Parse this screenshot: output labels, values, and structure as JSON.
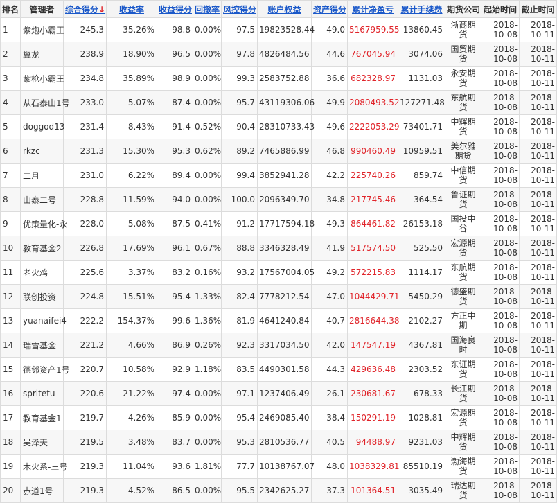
{
  "headers": [
    "排名",
    "管理者",
    "综合得分",
    "收益率",
    "收益得分",
    "回撤率",
    "风控得分",
    "账户权益",
    "资产得分",
    "累计净盈亏",
    "累计手续费",
    "期货公司",
    "起始时间",
    "截止时间"
  ],
  "sort_arrow": "↓",
  "rows": [
    {
      "rank": "1",
      "manager": "紫炮小霸王",
      "score": "245.3",
      "return_rate": "35.26%",
      "return_score": "98.8",
      "drawdown": "0.00%",
      "risk_score": "97.5",
      "equity": "19823528.44",
      "asset_score": "49.0",
      "net_pnl": "5167959.55",
      "fees": "13860.45",
      "company": "浙商期货",
      "start": "2018-10-08",
      "end": "2018-10-11"
    },
    {
      "rank": "2",
      "manager": "翼龙",
      "score": "238.9",
      "return_rate": "18.90%",
      "return_score": "96.5",
      "drawdown": "0.00%",
      "risk_score": "97.8",
      "equity": "4826484.56",
      "asset_score": "44.6",
      "net_pnl": "767045.94",
      "fees": "3074.06",
      "company": "国贸期货",
      "start": "2018-10-08",
      "end": "2018-10-11"
    },
    {
      "rank": "3",
      "manager": "紫枪小霸王",
      "score": "234.8",
      "return_rate": "35.89%",
      "return_score": "98.9",
      "drawdown": "0.00%",
      "risk_score": "99.3",
      "equity": "2583752.88",
      "asset_score": "36.6",
      "net_pnl": "682328.97",
      "fees": "1131.03",
      "company": "永安期货",
      "start": "2018-10-08",
      "end": "2018-10-11"
    },
    {
      "rank": "4",
      "manager": "从石泰山1号",
      "score": "233.0",
      "return_rate": "5.07%",
      "return_score": "87.4",
      "drawdown": "0.00%",
      "risk_score": "95.7",
      "equity": "43119306.06",
      "asset_score": "49.9",
      "net_pnl": "2080493.52",
      "fees": "127271.48",
      "company": "东航期货",
      "start": "2018-10-08",
      "end": "2018-10-11"
    },
    {
      "rank": "5",
      "manager": "doggod13",
      "score": "231.4",
      "return_rate": "8.43%",
      "return_score": "91.4",
      "drawdown": "0.52%",
      "risk_score": "90.4",
      "equity": "28310733.43",
      "asset_score": "49.6",
      "net_pnl": "2222053.29",
      "fees": "73401.71",
      "company": "中辉期货",
      "start": "2018-10-08",
      "end": "2018-10-11"
    },
    {
      "rank": "6",
      "manager": "rkzc",
      "score": "231.3",
      "return_rate": "15.30%",
      "return_score": "95.3",
      "drawdown": "0.62%",
      "risk_score": "89.2",
      "equity": "7465886.99",
      "asset_score": "46.8",
      "net_pnl": "990460.49",
      "fees": "10959.51",
      "company": "美尔雅期货",
      "start": "2018-10-08",
      "end": "2018-10-11"
    },
    {
      "rank": "7",
      "manager": "二月",
      "score": "231.0",
      "return_rate": "6.22%",
      "return_score": "89.4",
      "drawdown": "0.00%",
      "risk_score": "99.4",
      "equity": "3852941.28",
      "asset_score": "42.2",
      "net_pnl": "225740.26",
      "fees": "859.74",
      "company": "中信期货",
      "start": "2018-10-08",
      "end": "2018-10-11"
    },
    {
      "rank": "8",
      "manager": "山泰二号",
      "score": "228.8",
      "return_rate": "11.59%",
      "return_score": "94.0",
      "drawdown": "0.00%",
      "risk_score": "100.0",
      "equity": "2096349.70",
      "asset_score": "34.8",
      "net_pnl": "217745.46",
      "fees": "364.54",
      "company": "鲁证期货",
      "start": "2018-10-08",
      "end": "2018-10-11"
    },
    {
      "rank": "9",
      "manager": "优策量化-永",
      "score": "228.0",
      "return_rate": "5.08%",
      "return_score": "87.5",
      "drawdown": "0.41%",
      "risk_score": "91.2",
      "equity": "17717594.18",
      "asset_score": "49.3",
      "net_pnl": "864461.82",
      "fees": "26153.18",
      "company": "国投中谷",
      "start": "2018-10-08",
      "end": "2018-10-11"
    },
    {
      "rank": "10",
      "manager": "教育基金2",
      "score": "226.8",
      "return_rate": "17.69%",
      "return_score": "96.1",
      "drawdown": "0.67%",
      "risk_score": "88.8",
      "equity": "3346328.49",
      "asset_score": "41.9",
      "net_pnl": "517574.50",
      "fees": "525.50",
      "company": "宏源期货",
      "start": "2018-10-08",
      "end": "2018-10-11"
    },
    {
      "rank": "11",
      "manager": "老火鸡",
      "score": "225.6",
      "return_rate": "3.37%",
      "return_score": "83.2",
      "drawdown": "0.16%",
      "risk_score": "93.2",
      "equity": "17567004.05",
      "asset_score": "49.2",
      "net_pnl": "572215.83",
      "fees": "1114.17",
      "company": "东航期货",
      "start": "2018-10-08",
      "end": "2018-10-11"
    },
    {
      "rank": "12",
      "manager": "联创投资",
      "score": "224.8",
      "return_rate": "15.51%",
      "return_score": "95.4",
      "drawdown": "1.33%",
      "risk_score": "82.4",
      "equity": "7778212.54",
      "asset_score": "47.0",
      "net_pnl": "1044429.71",
      "fees": "5450.29",
      "company": "德盛期货",
      "start": "2018-10-08",
      "end": "2018-10-11"
    },
    {
      "rank": "13",
      "manager": "yuanaifei4",
      "score": "222.2",
      "return_rate": "154.37%",
      "return_score": "99.6",
      "drawdown": "1.36%",
      "risk_score": "81.9",
      "equity": "4641240.84",
      "asset_score": "40.7",
      "net_pnl": "2816644.38",
      "fees": "2102.27",
      "company": "方正中期",
      "start": "2018-10-08",
      "end": "2018-10-11"
    },
    {
      "rank": "14",
      "manager": "瑞雪基金",
      "score": "221.2",
      "return_rate": "4.66%",
      "return_score": "86.9",
      "drawdown": "0.26%",
      "risk_score": "92.3",
      "equity": "3317034.50",
      "asset_score": "42.0",
      "net_pnl": "147547.19",
      "fees": "4367.81",
      "company": "国海良时",
      "start": "2018-10-08",
      "end": "2018-10-11"
    },
    {
      "rank": "15",
      "manager": "德邻资产1号",
      "score": "220.7",
      "return_rate": "10.58%",
      "return_score": "92.9",
      "drawdown": "1.18%",
      "risk_score": "83.5",
      "equity": "4490301.58",
      "asset_score": "44.3",
      "net_pnl": "429636.48",
      "fees": "2303.52",
      "company": "东证期货",
      "start": "2018-10-08",
      "end": "2018-10-11"
    },
    {
      "rank": "16",
      "manager": "spritetu",
      "score": "220.6",
      "return_rate": "21.22%",
      "return_score": "97.4",
      "drawdown": "0.00%",
      "risk_score": "97.1",
      "equity": "1237406.49",
      "asset_score": "26.1",
      "net_pnl": "230681.67",
      "fees": "678.33",
      "company": "长江期货",
      "start": "2018-10-08",
      "end": "2018-10-11"
    },
    {
      "rank": "17",
      "manager": "教育基金1",
      "score": "219.7",
      "return_rate": "4.26%",
      "return_score": "85.9",
      "drawdown": "0.00%",
      "risk_score": "95.4",
      "equity": "2469085.40",
      "asset_score": "38.4",
      "net_pnl": "150291.19",
      "fees": "1028.81",
      "company": "宏源期货",
      "start": "2018-10-08",
      "end": "2018-10-11"
    },
    {
      "rank": "18",
      "manager": "吴泽天",
      "score": "219.5",
      "return_rate": "3.48%",
      "return_score": "83.7",
      "drawdown": "0.00%",
      "risk_score": "95.3",
      "equity": "2810536.77",
      "asset_score": "40.5",
      "net_pnl": "94488.97",
      "fees": "9231.03",
      "company": "中辉期货",
      "start": "2018-10-08",
      "end": "2018-10-11"
    },
    {
      "rank": "19",
      "manager": "木火系-三号",
      "score": "219.3",
      "return_rate": "11.04%",
      "return_score": "93.6",
      "drawdown": "1.81%",
      "risk_score": "77.7",
      "equity": "10138767.07",
      "asset_score": "48.0",
      "net_pnl": "1038329.81",
      "fees": "85510.19",
      "company": "渤海期货",
      "start": "2018-10-08",
      "end": "2018-10-11"
    },
    {
      "rank": "20",
      "manager": "赤道1号",
      "score": "219.3",
      "return_rate": "4.52%",
      "return_score": "86.5",
      "drawdown": "0.00%",
      "risk_score": "95.5",
      "equity": "2342625.27",
      "asset_score": "37.3",
      "net_pnl": "101364.51",
      "fees": "3035.49",
      "company": "瑞达期货",
      "start": "2018-10-08",
      "end": "2018-10-11"
    }
  ]
}
